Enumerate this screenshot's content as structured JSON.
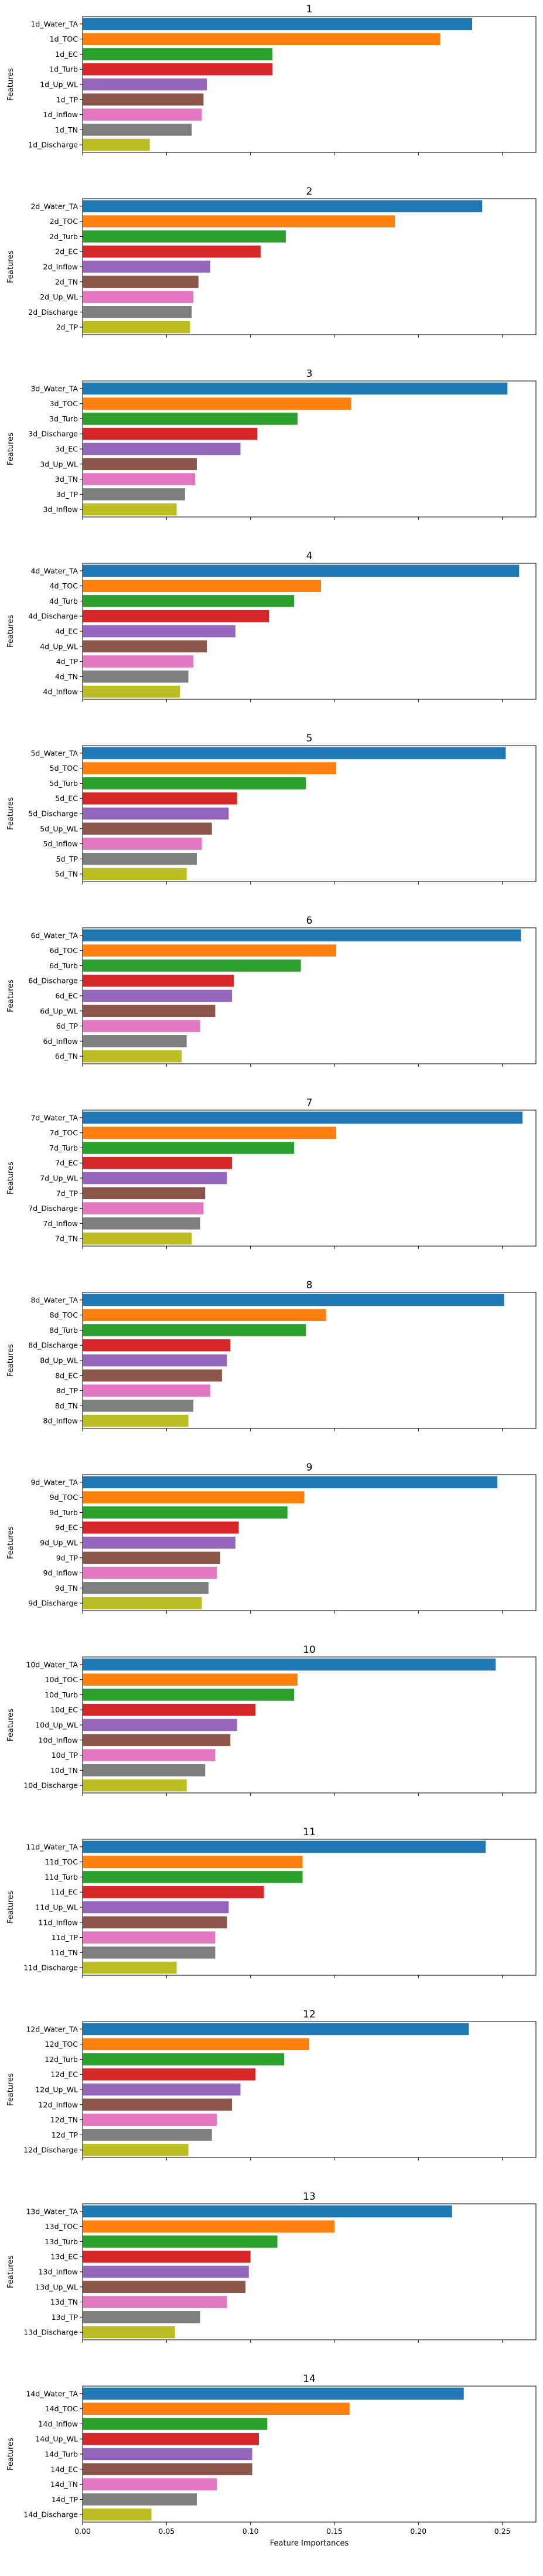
{
  "figure": {
    "ylabel": "Features",
    "xlabel": "Feature Importances",
    "palette": [
      "#1f77b4",
      "#ff7f0e",
      "#2ca02c",
      "#d62728",
      "#9467bd",
      "#8c564b",
      "#e377c2",
      "#7f7f7f",
      "#bcbd22"
    ],
    "bar_color_order": [
      "blue",
      "orange",
      "green",
      "red",
      "purple",
      "brown",
      "pink",
      "gray",
      "olive"
    ]
  },
  "chart_data": [
    {
      "type": "bar",
      "orientation": "horizontal",
      "title": "1",
      "xlabel": "",
      "ylabel": "Features",
      "xlim": [
        0,
        0.27
      ],
      "grid": false,
      "categories": [
        "1d_Water_TA",
        "1d_TOC",
        "1d_EC",
        "1d_Turb",
        "1d_Up_WL",
        "1d_TP",
        "1d_Inflow",
        "1d_TN",
        "1d_Discharge"
      ],
      "values": [
        0.232,
        0.213,
        0.113,
        0.113,
        0.074,
        0.072,
        0.071,
        0.065,
        0.04
      ]
    },
    {
      "type": "bar",
      "orientation": "horizontal",
      "title": "2",
      "xlabel": "",
      "ylabel": "Features",
      "xlim": [
        0,
        0.27
      ],
      "grid": false,
      "categories": [
        "2d_Water_TA",
        "2d_TOC",
        "2d_Turb",
        "2d_EC",
        "2d_Inflow",
        "2d_TN",
        "2d_Up_WL",
        "2d_Discharge",
        "2d_TP"
      ],
      "values": [
        0.238,
        0.186,
        0.121,
        0.106,
        0.076,
        0.069,
        0.066,
        0.065,
        0.064
      ]
    },
    {
      "type": "bar",
      "orientation": "horizontal",
      "title": "3",
      "xlabel": "",
      "ylabel": "Features",
      "xlim": [
        0,
        0.27
      ],
      "grid": false,
      "categories": [
        "3d_Water_TA",
        "3d_TOC",
        "3d_Turb",
        "3d_Discharge",
        "3d_EC",
        "3d_Up_WL",
        "3d_TN",
        "3d_TP",
        "3d_Inflow"
      ],
      "values": [
        0.253,
        0.16,
        0.128,
        0.104,
        0.094,
        0.068,
        0.067,
        0.061,
        0.056
      ]
    },
    {
      "type": "bar",
      "orientation": "horizontal",
      "title": "4",
      "xlabel": "",
      "ylabel": "Features",
      "xlim": [
        0,
        0.27
      ],
      "grid": false,
      "categories": [
        "4d_Water_TA",
        "4d_TOC",
        "4d_Turb",
        "4d_Discharge",
        "4d_EC",
        "4d_Up_WL",
        "4d_TP",
        "4d_TN",
        "4d_Inflow"
      ],
      "values": [
        0.26,
        0.142,
        0.126,
        0.111,
        0.091,
        0.074,
        0.066,
        0.063,
        0.058
      ]
    },
    {
      "type": "bar",
      "orientation": "horizontal",
      "title": "5",
      "xlabel": "",
      "ylabel": "Features",
      "xlim": [
        0,
        0.27
      ],
      "grid": false,
      "categories": [
        "5d_Water_TA",
        "5d_TOC",
        "5d_Turb",
        "5d_EC",
        "5d_Discharge",
        "5d_Up_WL",
        "5d_Inflow",
        "5d_TP",
        "5d_TN"
      ],
      "values": [
        0.252,
        0.151,
        0.133,
        0.092,
        0.087,
        0.077,
        0.071,
        0.068,
        0.062
      ]
    },
    {
      "type": "bar",
      "orientation": "horizontal",
      "title": "6",
      "xlabel": "",
      "ylabel": "Features",
      "xlim": [
        0,
        0.27
      ],
      "grid": false,
      "categories": [
        "6d_Water_TA",
        "6d_TOC",
        "6d_Turb",
        "6d_Discharge",
        "6d_EC",
        "6d_Up_WL",
        "6d_TP",
        "6d_Inflow",
        "6d_TN"
      ],
      "values": [
        0.261,
        0.151,
        0.13,
        0.09,
        0.089,
        0.079,
        0.07,
        0.062,
        0.059
      ]
    },
    {
      "type": "bar",
      "orientation": "horizontal",
      "title": "7",
      "xlabel": "",
      "ylabel": "Features",
      "xlim": [
        0,
        0.27
      ],
      "grid": false,
      "categories": [
        "7d_Water_TA",
        "7d_TOC",
        "7d_Turb",
        "7d_EC",
        "7d_Up_WL",
        "7d_TP",
        "7d_Discharge",
        "7d_Inflow",
        "7d_TN"
      ],
      "values": [
        0.262,
        0.151,
        0.126,
        0.089,
        0.086,
        0.073,
        0.072,
        0.07,
        0.065
      ]
    },
    {
      "type": "bar",
      "orientation": "horizontal",
      "title": "8",
      "xlabel": "",
      "ylabel": "Features",
      "xlim": [
        0,
        0.27
      ],
      "grid": false,
      "categories": [
        "8d_Water_TA",
        "8d_TOC",
        "8d_Turb",
        "8d_Discharge",
        "8d_Up_WL",
        "8d_EC",
        "8d_TP",
        "8d_TN",
        "8d_Inflow"
      ],
      "values": [
        0.251,
        0.145,
        0.133,
        0.088,
        0.086,
        0.083,
        0.076,
        0.066,
        0.063
      ]
    },
    {
      "type": "bar",
      "orientation": "horizontal",
      "title": "9",
      "xlabel": "",
      "ylabel": "Features",
      "xlim": [
        0,
        0.27
      ],
      "grid": false,
      "categories": [
        "9d_Water_TA",
        "9d_TOC",
        "9d_Turb",
        "9d_EC",
        "9d_Up_WL",
        "9d_TP",
        "9d_Inflow",
        "9d_TN",
        "9d_Discharge"
      ],
      "values": [
        0.247,
        0.132,
        0.122,
        0.093,
        0.091,
        0.082,
        0.08,
        0.075,
        0.071
      ]
    },
    {
      "type": "bar",
      "orientation": "horizontal",
      "title": "10",
      "xlabel": "",
      "ylabel": "Features",
      "xlim": [
        0,
        0.27
      ],
      "grid": false,
      "categories": [
        "10d_Water_TA",
        "10d_TOC",
        "10d_Turb",
        "10d_EC",
        "10d_Up_WL",
        "10d_Inflow",
        "10d_TP",
        "10d_TN",
        "10d_Discharge"
      ],
      "values": [
        0.246,
        0.128,
        0.126,
        0.103,
        0.092,
        0.088,
        0.079,
        0.073,
        0.062
      ]
    },
    {
      "type": "bar",
      "orientation": "horizontal",
      "title": "11",
      "xlabel": "",
      "ylabel": "Features",
      "xlim": [
        0,
        0.27
      ],
      "grid": false,
      "categories": [
        "11d_Water_TA",
        "11d_TOC",
        "11d_Turb",
        "11d_EC",
        "11d_Up_WL",
        "11d_Inflow",
        "11d_TP",
        "11d_TN",
        "11d_Discharge"
      ],
      "values": [
        0.24,
        0.131,
        0.131,
        0.108,
        0.087,
        0.086,
        0.079,
        0.079,
        0.056
      ]
    },
    {
      "type": "bar",
      "orientation": "horizontal",
      "title": "12",
      "xlabel": "",
      "ylabel": "Features",
      "xlim": [
        0,
        0.27
      ],
      "grid": false,
      "categories": [
        "12d_Water_TA",
        "12d_TOC",
        "12d_Turb",
        "12d_EC",
        "12d_Up_WL",
        "12d_Inflow",
        "12d_TN",
        "12d_TP",
        "12d_Discharge"
      ],
      "values": [
        0.23,
        0.135,
        0.12,
        0.103,
        0.094,
        0.089,
        0.08,
        0.077,
        0.063
      ]
    },
    {
      "type": "bar",
      "orientation": "horizontal",
      "title": "13",
      "xlabel": "",
      "ylabel": "Features",
      "xlim": [
        0,
        0.27
      ],
      "grid": false,
      "categories": [
        "13d_Water_TA",
        "13d_TOC",
        "13d_Turb",
        "13d_EC",
        "13d_Inflow",
        "13d_Up_WL",
        "13d_TN",
        "13d_TP",
        "13d_Discharge"
      ],
      "values": [
        0.22,
        0.15,
        0.116,
        0.1,
        0.099,
        0.097,
        0.086,
        0.07,
        0.055
      ]
    },
    {
      "type": "bar",
      "orientation": "horizontal",
      "title": "14",
      "xlabel": "Feature Importances",
      "ylabel": "Features",
      "xlim": [
        0,
        0.27
      ],
      "grid": false,
      "xticks": [
        0.0,
        0.05,
        0.1,
        0.15,
        0.2,
        0.25
      ],
      "xtick_labels": [
        "0.00",
        "0.05",
        "0.10",
        "0.15",
        "0.20",
        "0.25"
      ],
      "categories": [
        "14d_Water_TA",
        "14d_TOC",
        "14d_Inflow",
        "14d_Up_WL",
        "14d_Turb",
        "14d_EC",
        "14d_TN",
        "14d_TP",
        "14d_Discharge"
      ],
      "values": [
        0.227,
        0.159,
        0.11,
        0.105,
        0.101,
        0.101,
        0.08,
        0.068,
        0.041
      ]
    }
  ]
}
